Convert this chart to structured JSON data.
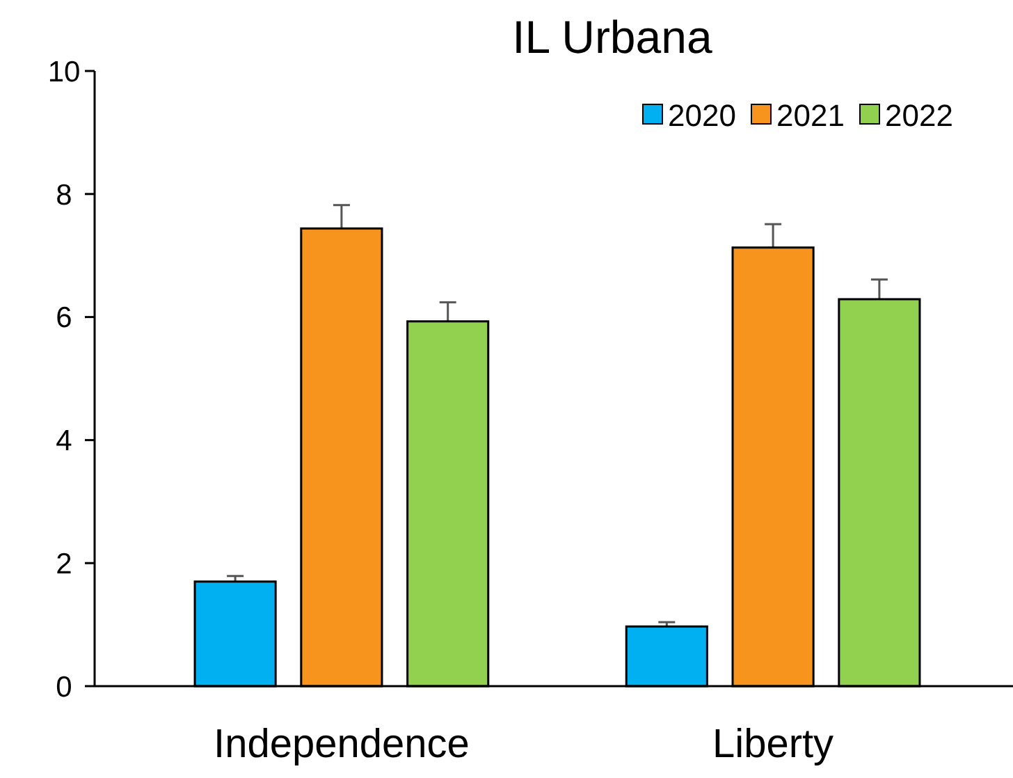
{
  "chart_data": {
    "type": "bar",
    "title": "IL Urbana",
    "categories": [
      "Independence",
      "Liberty"
    ],
    "series": [
      {
        "name": "2020",
        "color": "#00b0f0",
        "values": [
          1.7,
          0.97
        ],
        "errors": [
          0.09,
          0.07
        ]
      },
      {
        "name": "2021",
        "color": "#f7941d",
        "values": [
          7.44,
          7.13
        ],
        "errors": [
          0.38,
          0.38
        ]
      },
      {
        "name": "2022",
        "color": "#92d050",
        "values": [
          5.93,
          6.29
        ],
        "errors": [
          0.31,
          0.32
        ]
      }
    ],
    "ylim": [
      0,
      10
    ],
    "yticks": [
      0,
      2,
      4,
      6,
      8,
      10
    ],
    "grid": false,
    "legend": "top right"
  }
}
